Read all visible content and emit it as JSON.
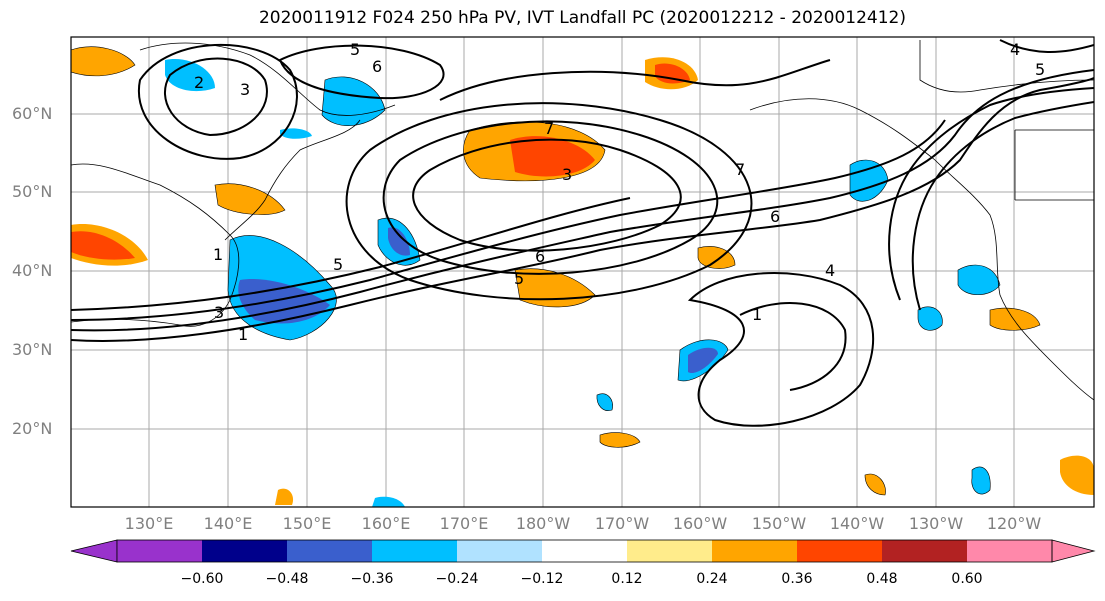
{
  "title": "2020011912 F024 250 hPa PV, IVT Landfall PC (2020012212 - 2020012412)",
  "lat_labels": [
    "60°N",
    "50°N",
    "40°N",
    "30°N",
    "20°N"
  ],
  "lon_labels": [
    "130°E",
    "140°E",
    "150°E",
    "160°E",
    "170°E",
    "180°W",
    "170°W",
    "160°W",
    "150°W",
    "140°W",
    "130°W",
    "120°W"
  ],
  "colorbar": {
    "ticks": [
      "−0.60",
      "−0.48",
      "−0.36",
      "−0.24",
      "−0.12",
      "0.12",
      "0.24",
      "0.36",
      "0.48",
      "0.60"
    ],
    "colors": [
      "#9932CC",
      "#00008B",
      "#3A5FCD",
      "#00BFFF",
      "#B0E2FF",
      "#FFFFFF",
      "#FFEC8B",
      "#FFA500",
      "#FF4500",
      "#B22222",
      "#FF88AA"
    ]
  },
  "contour_labels": [
    "1",
    "2",
    "3",
    "4",
    "5",
    "6",
    "7"
  ]
}
